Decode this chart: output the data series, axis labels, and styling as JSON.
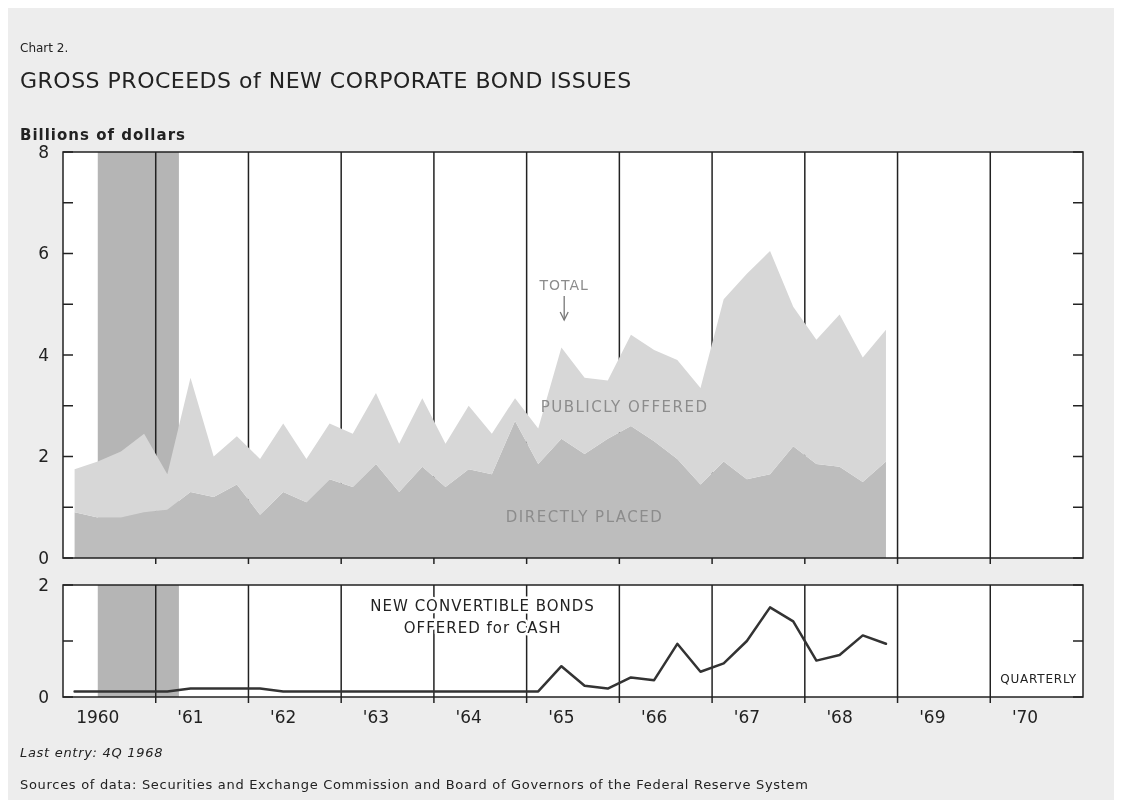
{
  "chart_data": [
    {
      "type": "area",
      "stacked": true,
      "title": "GROSS PROCEEDS of NEW CORPORATE BOND ISSUES",
      "ylabel": "Billions of dollars",
      "categories": [
        null,
        "1960",
        null,
        null,
        null,
        "'61",
        null,
        null,
        null,
        "'62",
        null,
        null,
        null,
        "'63",
        null,
        null,
        null,
        "'64",
        null,
        null,
        null,
        "'65",
        null,
        null,
        null,
        "'66",
        null,
        null,
        null,
        "'67",
        null,
        null,
        null,
        "'68",
        null,
        null,
        null,
        "'69",
        null,
        null,
        null,
        "'70",
        null,
        null
      ],
      "series": [
        {
          "name": "DIRECTLY PLACED",
          "color": "#bdbdbd",
          "values": [
            0.9,
            0.8,
            0.8,
            0.9,
            0.95,
            1.3,
            1.2,
            1.45,
            0.85,
            1.3,
            1.1,
            1.55,
            1.4,
            1.85,
            1.3,
            1.8,
            1.4,
            1.75,
            1.65,
            2.7,
            1.85,
            2.35,
            2.05,
            2.35,
            2.6,
            2.3,
            1.95,
            1.45,
            1.9,
            1.55,
            1.65,
            2.2,
            1.85,
            1.8,
            1.5,
            1.9,
            null,
            null,
            null,
            null,
            null,
            null,
            null,
            null
          ]
        },
        {
          "name": "PUBLICLY OFFERED",
          "color": "#d7d7d7",
          "values": [
            0.85,
            1.1,
            1.3,
            1.55,
            0.7,
            2.25,
            0.8,
            0.95,
            1.1,
            1.35,
            0.85,
            1.1,
            1.05,
            1.4,
            0.95,
            1.35,
            0.85,
            1.25,
            0.8,
            0.45,
            0.7,
            1.8,
            1.5,
            1.15,
            1.8,
            1.8,
            1.95,
            1.9,
            3.2,
            4.05,
            4.4,
            2.75,
            2.45,
            3.0,
            2.45,
            2.6,
            null,
            null,
            null,
            null,
            null,
            null,
            null,
            null
          ]
        }
      ],
      "ylim": [
        0,
        8
      ],
      "yticks": [
        0,
        {
          "value": 1,
          "label": null
        },
        2,
        {
          "value": 3,
          "label": null
        },
        4,
        {
          "value": 5,
          "label": null
        },
        6,
        {
          "value": 7,
          "label": null
        },
        8
      ],
      "grid": "x",
      "tick_labels": "y",
      "bands": [
        {
          "axis": "x",
          "from": "1960",
          "to": "'61",
          "color": "#b5b5b5"
        }
      ],
      "annotations": [
        "Chart 2.",
        "TOTAL"
      ]
    },
    {
      "type": "line",
      "categories": [
        null,
        "1960",
        null,
        null,
        null,
        "'61",
        null,
        null,
        null,
        "'62",
        null,
        null,
        null,
        "'63",
        null,
        null,
        null,
        "'64",
        null,
        null,
        null,
        "'65",
        null,
        null,
        null,
        "'66",
        null,
        null,
        null,
        "'67",
        null,
        null,
        null,
        "'68",
        null,
        null,
        null,
        "'69",
        null,
        null,
        null,
        "'70",
        null,
        null
      ],
      "series": [
        {
          "name": "NEW CONVERTIBLE BONDS OFFERED for CASH",
          "color": "#333333",
          "values": [
            0.1,
            0.1,
            0.1,
            0.1,
            0.1,
            0.15,
            0.15,
            0.15,
            0.15,
            0.1,
            0.1,
            0.1,
            0.1,
            0.1,
            0.1,
            0.1,
            0.1,
            0.1,
            0.1,
            0.1,
            0.1,
            0.55,
            0.2,
            0.15,
            0.35,
            0.3,
            0.95,
            0.45,
            0.6,
            1.0,
            1.6,
            1.35,
            0.65,
            0.75,
            1.1,
            0.95,
            null,
            null,
            null,
            null,
            null,
            null,
            null,
            null
          ]
        }
      ],
      "ylim": [
        0,
        2
      ],
      "yticks": [
        0,
        {
          "value": 1,
          "label": null
        },
        2
      ],
      "grid": "x",
      "line_style": "solid",
      "marker": "none",
      "bands": [
        {
          "axis": "x",
          "from": "1960",
          "to": "'61",
          "color": "#b5b5b5"
        }
      ],
      "annotations": [
        "QUARTERLY",
        "Last entry:  4Q 1968",
        "Sources of data:  Securities and Exchange Commission and Board of Governors of the Federal Reserve System"
      ]
    }
  ]
}
